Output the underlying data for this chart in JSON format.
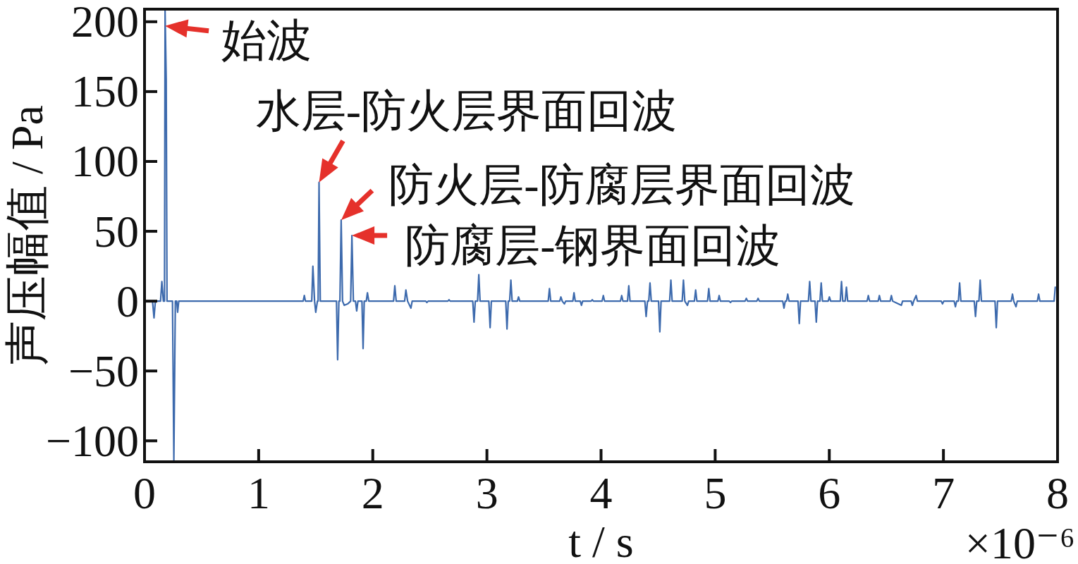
{
  "chart_data": {
    "type": "line",
    "xlabel": "t / s",
    "ylabel": "声压幅值 / Pa",
    "annotations": [
      {
        "text": "始波",
        "x": 0.18,
        "y": 197
      },
      {
        "text": "水层-防火层界面回波",
        "x": 1.529,
        "y": 85
      },
      {
        "text": "防火层-防腐层界面回波",
        "x": 1.723,
        "y": 58
      },
      {
        "text": "防腐层-钢界面回波",
        "x": 1.817,
        "y": 47
      },
      "×10⁻⁶"
    ],
    "x": [
      0.03,
      0.07,
      0.083,
      0.095,
      0.14,
      0.152,
      0.165,
      0.175,
      0.18,
      0.19,
      0.197,
      0.245,
      0.257,
      0.27,
      0.282,
      0.29,
      0.3,
      1.39,
      1.4,
      1.41,
      1.465,
      1.475,
      1.49,
      1.5,
      1.515,
      1.521,
      1.529,
      1.54,
      1.682,
      1.692,
      1.703,
      1.712,
      1.723,
      1.735,
      1.75,
      1.78,
      1.806,
      1.817,
      1.83,
      1.848,
      1.859,
      1.87,
      1.905,
      1.915,
      1.925,
      1.943,
      1.953,
      1.965,
      2.182,
      2.193,
      2.205,
      2.279,
      2.29,
      2.305,
      2.334,
      2.345,
      2.464,
      2.474,
      2.485,
      2.658,
      2.668,
      2.678,
      2.876,
      2.887,
      2.898,
      2.918,
      2.929,
      2.94,
      3.017,
      3.028,
      3.039,
      3.165,
      3.176,
      3.187,
      3.199,
      3.21,
      3.221,
      3.267,
      3.277,
      3.288,
      3.537,
      3.548,
      3.559,
      3.638,
      3.648,
      3.66,
      3.679,
      3.69,
      3.753,
      3.763,
      3.774,
      3.818,
      3.828,
      3.839,
      3.913,
      3.923,
      3.933,
      4.009,
      4.02,
      4.031,
      4.17,
      4.181,
      4.192,
      4.232,
      4.243,
      4.254,
      4.384,
      4.395,
      4.407,
      4.418,
      4.429,
      4.44,
      4.504,
      4.515,
      4.526,
      4.601,
      4.612,
      4.623,
      4.711,
      4.722,
      4.734,
      4.757,
      4.768,
      4.818,
      4.829,
      4.84,
      4.933,
      4.944,
      4.955,
      5.024,
      5.035,
      5.046,
      5.123,
      5.134,
      5.145,
      5.262,
      5.273,
      5.284,
      5.365,
      5.376,
      5.387,
      5.592,
      5.603,
      5.614,
      5.625,
      5.636,
      5.647,
      5.726,
      5.737,
      5.748,
      5.817,
      5.828,
      5.839,
      5.875,
      5.886,
      5.897,
      5.918,
      5.929,
      5.94,
      5.99,
      6.001,
      6.012,
      6.096,
      6.107,
      6.118,
      6.139,
      6.15,
      6.161,
      6.331,
      6.342,
      6.353,
      6.428,
      6.439,
      6.45,
      6.533,
      6.544,
      6.555,
      6.631,
      6.642,
      6.717,
      6.728,
      6.739,
      6.761,
      6.772,
      6.981,
      6.992,
      7.003,
      7.094,
      7.105,
      7.116,
      7.131,
      7.142,
      7.153,
      7.27,
      7.281,
      7.292,
      7.311,
      7.322,
      7.333,
      7.452,
      7.463,
      7.474,
      7.594,
      7.605,
      7.616,
      7.636,
      7.647,
      7.823,
      7.834,
      7.845,
      7.97,
      7.98
    ],
    "series": [
      {
        "color": "#3d6aad",
        "values": [
          0,
          0,
          -12,
          0,
          0,
          14,
          0,
          0,
          208,
          159,
          0,
          0,
          -114,
          0,
          0,
          -8,
          0,
          0,
          4,
          0,
          0,
          25,
          0,
          -8,
          0,
          0,
          85,
          0,
          0,
          -42,
          0,
          0,
          58,
          0,
          -3,
          -2,
          0,
          47,
          0,
          0,
          -7,
          0,
          0,
          -34,
          0,
          0,
          6,
          0,
          0,
          11,
          0,
          0,
          8,
          0,
          -5,
          0,
          0,
          -1,
          0,
          0,
          1,
          0,
          0,
          -15,
          0,
          0,
          19,
          0,
          0,
          -19,
          0,
          0,
          -20,
          0,
          0,
          15,
          0,
          0,
          3,
          0,
          0,
          9,
          0,
          0,
          3,
          0,
          -2,
          0,
          0,
          6,
          0,
          0,
          -3,
          0,
          0,
          1,
          0,
          0,
          4,
          0,
          0,
          4,
          0,
          0,
          11,
          0,
          0,
          -11,
          0,
          0,
          13,
          0,
          0,
          -22,
          0,
          0,
          15,
          0,
          0,
          15,
          0,
          -3,
          0,
          0,
          8,
          0,
          0,
          9,
          0,
          0,
          4,
          0,
          0,
          -1,
          0,
          0,
          2,
          0,
          0,
          2,
          0,
          0,
          -5,
          0,
          0,
          5,
          0,
          0,
          -16,
          0,
          0,
          14,
          0,
          0,
          -15,
          0,
          0,
          13,
          0,
          0,
          3,
          0,
          0,
          14,
          0,
          0,
          10,
          0,
          0,
          4,
          0,
          0,
          4,
          0,
          0,
          4,
          0,
          -3,
          0,
          0,
          -3,
          0,
          4,
          0,
          0,
          -2,
          0,
          0,
          -4,
          0,
          0,
          13,
          0,
          0,
          -11,
          0,
          0,
          15,
          0,
          0,
          -19,
          0,
          0,
          5,
          0,
          -4,
          0,
          0,
          5,
          0,
          0,
          10
        ]
      }
    ],
    "xlim": [
      0,
      8
    ],
    "ylim": [
      -115,
      209
    ],
    "xticks": [
      0,
      1,
      2,
      3,
      4,
      5,
      6,
      7,
      8
    ],
    "yticks": [
      -100,
      -50,
      0,
      50,
      100,
      150,
      200
    ]
  }
}
